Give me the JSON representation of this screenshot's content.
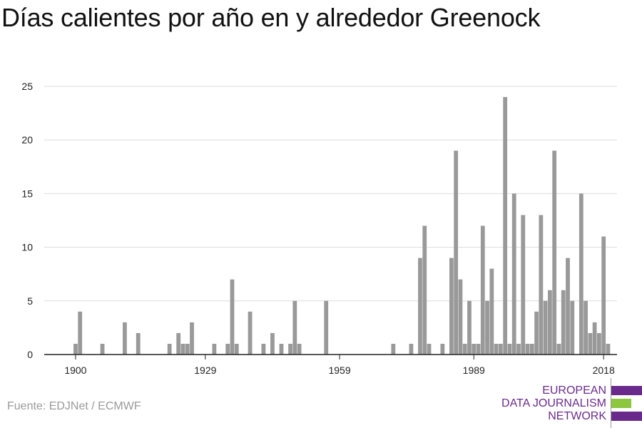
{
  "title": "Días calientes por año en y alrededor Greenock",
  "source": "Fuente: EDJNet / ECMWF",
  "logo": {
    "lines": [
      "EUROPEAN",
      "DATA JOURNALISM",
      "NETWORK"
    ],
    "colors": {
      "purple": "#6a2a8c",
      "green": "#8dc63f",
      "text": "#6a2a8c"
    }
  },
  "chart_data": {
    "type": "bar",
    "title": "Días calientes por año en y alrededor Greenock",
    "xlabel": "",
    "ylabel": "",
    "ylim": [
      0,
      25
    ],
    "xlim": [
      1893,
      2021
    ],
    "y_ticks": [
      0,
      5,
      10,
      15,
      20,
      25
    ],
    "x_ticks": [
      1900,
      1929,
      1959,
      1989,
      2018
    ],
    "grid": "horizontal",
    "bar_color": "#999999",
    "x": [
      1900,
      1901,
      1906,
      1911,
      1914,
      1921,
      1923,
      1924,
      1925,
      1926,
      1931,
      1934,
      1935,
      1936,
      1939,
      1942,
      1944,
      1946,
      1948,
      1949,
      1950,
      1956,
      1971,
      1975,
      1977,
      1978,
      1979,
      1982,
      1984,
      1985,
      1986,
      1987,
      1988,
      1989,
      1990,
      1991,
      1992,
      1993,
      1994,
      1995,
      1996,
      1997,
      1998,
      1999,
      2000,
      2001,
      2002,
      2003,
      2004,
      2005,
      2006,
      2007,
      2008,
      2009,
      2010,
      2011,
      2013,
      2014,
      2015,
      2016,
      2017,
      2018,
      2019
    ],
    "values": [
      1,
      4,
      1,
      3,
      2,
      1,
      2,
      1,
      1,
      3,
      1,
      1,
      7,
      1,
      4,
      1,
      2,
      1,
      1,
      5,
      1,
      5,
      1,
      1,
      9,
      12,
      1,
      1,
      9,
      19,
      7,
      1,
      5,
      1,
      1,
      12,
      5,
      8,
      1,
      1,
      24,
      1,
      15,
      1,
      13,
      1,
      1,
      4,
      13,
      5,
      6,
      19,
      1,
      6,
      9,
      5,
      15,
      5,
      2,
      3,
      2,
      11,
      1
    ]
  }
}
